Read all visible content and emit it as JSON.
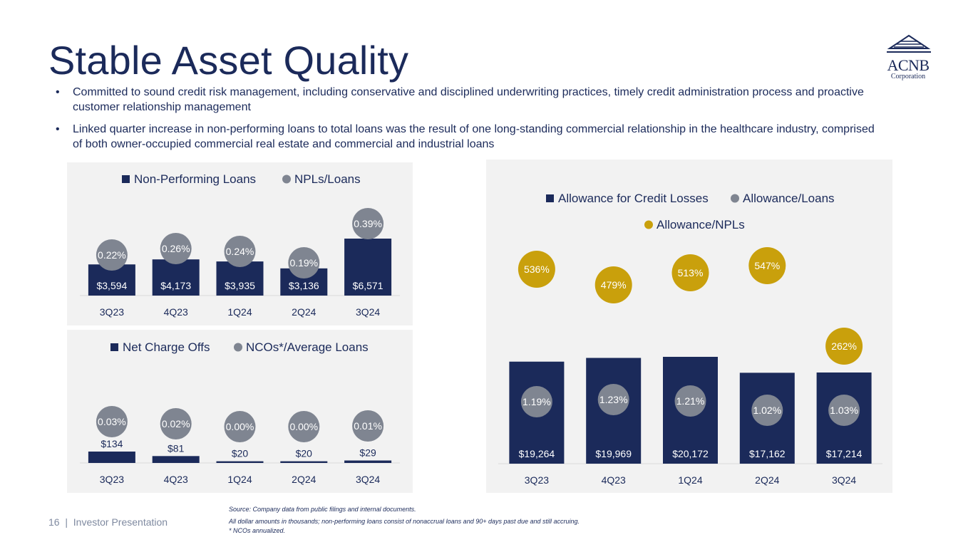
{
  "title": "Stable Asset Quality",
  "logo": {
    "name": "ACNB",
    "sub": "Corporation"
  },
  "bullets": [
    "Committed to sound credit risk management, including conservative and disciplined underwriting practices, timely credit administration process and proactive customer relationship management",
    "Linked quarter increase in non-performing loans to total loans was the result of one long-standing commercial relationship in the healthcare industry, comprised of both owner-occupied commercial real estate and commercial and industrial loans"
  ],
  "colors": {
    "navy": "#1b2a5a",
    "gray": "#7f8591",
    "gold": "#c9a00c",
    "panel": "#f2f2f2"
  },
  "chart_data": [
    {
      "type": "bar",
      "categories": [
        "3Q23",
        "4Q23",
        "1Q24",
        "2Q24",
        "3Q24"
      ],
      "series": [
        {
          "name": "Non-Performing Loans",
          "values": [
            3594,
            4173,
            3935,
            3136,
            6571
          ],
          "labels": [
            "$3,594",
            "$4,173",
            "$3,935",
            "$3,136",
            "$6,571"
          ]
        },
        {
          "name": "NPLs/Loans",
          "values": [
            0.22,
            0.26,
            0.24,
            0.19,
            0.39
          ],
          "labels": [
            "0.22%",
            "0.26%",
            "0.24%",
            "0.19%",
            "0.39%"
          ]
        }
      ]
    },
    {
      "type": "bar",
      "categories": [
        "3Q23",
        "4Q23",
        "1Q24",
        "2Q24",
        "3Q24"
      ],
      "series": [
        {
          "name": "Net Charge Offs",
          "values": [
            134,
            81,
            20,
            20,
            29
          ],
          "labels": [
            "$134",
            "$81",
            "$20",
            "$20",
            "$29"
          ]
        },
        {
          "name": "NCOs*/Average Loans",
          "values": [
            0.03,
            0.02,
            0.0,
            0.0,
            0.01
          ],
          "labels": [
            "0.03%",
            "0.02%",
            "0.00%",
            "0.00%",
            "0.01%"
          ]
        }
      ]
    },
    {
      "type": "bar",
      "categories": [
        "3Q23",
        "4Q23",
        "1Q24",
        "2Q24",
        "3Q24"
      ],
      "series": [
        {
          "name": "Allowance for Credit Losses",
          "values": [
            19264,
            19969,
            20172,
            17162,
            17214
          ],
          "labels": [
            "$19,264",
            "$19,969",
            "$20,172",
            "$17,162",
            "$17,214"
          ]
        },
        {
          "name": "Allowance/Loans",
          "values": [
            1.19,
            1.23,
            1.21,
            1.02,
            1.03
          ],
          "labels": [
            "1.19%",
            "1.23%",
            "1.21%",
            "1.02%",
            "1.03%"
          ]
        },
        {
          "name": "Allowance/NPLs",
          "values": [
            536,
            479,
            513,
            547,
            262
          ],
          "labels": [
            "536%",
            "479%",
            "513%",
            "547%",
            "262%"
          ]
        }
      ]
    }
  ],
  "footer": {
    "page": "16",
    "presentation": "Investor Presentation",
    "source": "Source: Company data from public filings and internal documents.",
    "note1": "All dollar amounts in thousands; non-performing loans consist of nonaccrual loans and 90+ days past due and still accruing.",
    "note2": "* NCOs annualized."
  }
}
